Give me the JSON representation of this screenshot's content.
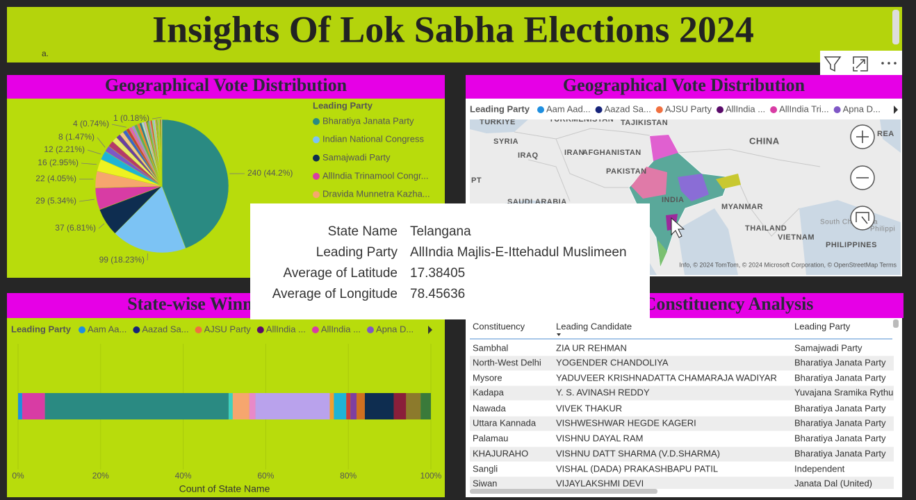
{
  "header": {
    "title": "Insights Of Lok Sabha Elections 2024",
    "note": "a."
  },
  "chart_data": [
    {
      "type": "pie",
      "title": "Geographical Vote Distribution",
      "legend_title": "Leading Party",
      "categories": [
        "Bharatiya Janata Party",
        "Indian National Congress",
        "Samajwadi Party",
        "AllIndia Trinamool Congr...",
        "Dravida Munnetra Kazha...",
        null,
        null,
        null,
        null,
        null,
        null,
        null,
        null,
        null,
        null,
        null,
        null,
        null,
        null,
        null,
        null,
        null,
        null,
        null,
        null,
        null,
        null,
        null,
        null,
        null,
        null,
        null,
        null,
        null,
        null,
        null
      ],
      "values": [
        240,
        99,
        37,
        29,
        22,
        16,
        12,
        8,
        8,
        7,
        6,
        5,
        5,
        4,
        4,
        4,
        4,
        3,
        3,
        3,
        3,
        2,
        2,
        2,
        2,
        2,
        2,
        1,
        1,
        1,
        1,
        1,
        1,
        1,
        1,
        1
      ],
      "value_labels": [
        "240 (44.2%)",
        "99 (18.23%)",
        "37 (6.81%)",
        "29 (5.34%)",
        "22 (4.05%)",
        "16 (2.95%)",
        "12 (2.21%)",
        "8 (1.47%)",
        null,
        null,
        null,
        null,
        null,
        "4 (0.74%)",
        null,
        null,
        null,
        null,
        null,
        null,
        null,
        null,
        null,
        null,
        null,
        null,
        null,
        null,
        null,
        null,
        null,
        null,
        null,
        null,
        null,
        "1 (0.18%)"
      ],
      "colors": [
        "#2a8a82",
        "#7cc3f4",
        "#0e2d50",
        "#d83ca4",
        "#f6a66e",
        "#eef221",
        "#1fb3d6",
        "#7f57c6",
        "#b5396b",
        "#e8e86a",
        "#6b3fa0",
        "#f4c38a",
        "#3d63c9",
        "#c63c3c",
        "#e15fb7",
        "#9d8fd8",
        "#5fa85f",
        "#f07a3a",
        "#2e6f9e",
        "#a7d2ea",
        "#d9a0c8",
        "#8c8c2c",
        "#4fb0a0",
        "#c07bd8",
        "#e04040",
        "#80e0c0",
        "#b0b0ff",
        "#ffb0b0",
        "#606060",
        "#9e7b4f",
        "#30c0ff",
        "#ff70a0",
        "#70ff70",
        "#a05030",
        "#5050a0",
        "#f0a0f0"
      ]
    },
    {
      "type": "bar",
      "orientation": "horizontal",
      "stacked": true,
      "title": "State-wise Winning Party",
      "legend_title": "Leading Party",
      "legend": [
        {
          "name": "Aam Aa...",
          "color": "#1e8fe0"
        },
        {
          "name": "Aazad Sa...",
          "color": "#16237a"
        },
        {
          "name": "AJSU Party",
          "color": "#f07040"
        },
        {
          "name": "AllIndia ...",
          "color": "#5a0a6a"
        },
        {
          "name": "AllIndia ...",
          "color": "#d83ca4"
        },
        {
          "name": "Apna D...",
          "color": "#7f57c6"
        }
      ],
      "series": [
        {
          "name": null,
          "color": "#1e8fe0",
          "values": [
            1
          ]
        },
        {
          "name": null,
          "color": "#d83ca4",
          "values": [
            5.5
          ]
        },
        {
          "name": null,
          "color": "#2a8a82",
          "values": [
            44.5
          ]
        },
        {
          "name": null,
          "color": "#3fd0c0",
          "values": [
            1
          ]
        },
        {
          "name": null,
          "color": "#f6a66e",
          "values": [
            4
          ]
        },
        {
          "name": null,
          "color": "#e889c8",
          "values": [
            1.5
          ]
        },
        {
          "name": null,
          "color": "#b9a2ec",
          "values": [
            18
          ]
        },
        {
          "name": null,
          "color": "#f0a030",
          "values": [
            1
          ]
        },
        {
          "name": null,
          "color": "#1fb3d6",
          "values": [
            3
          ]
        },
        {
          "name": null,
          "color": "#c83c3c",
          "values": [
            1
          ]
        },
        {
          "name": null,
          "color": "#7f3fa0",
          "values": [
            1.5
          ]
        },
        {
          "name": null,
          "color": "#d07020",
          "values": [
            2
          ]
        },
        {
          "name": null,
          "color": "#0e2d50",
          "values": [
            7
          ]
        },
        {
          "name": null,
          "color": "#8a1f3a",
          "values": [
            3
          ]
        },
        {
          "name": null,
          "color": "#8c7a2c",
          "values": [
            3.5
          ]
        },
        {
          "name": null,
          "color": "#3a7a3a",
          "values": [
            2.5
          ]
        }
      ],
      "xlim": [
        0,
        100
      ],
      "xticks": [
        {
          "value": 0,
          "label": "0%"
        },
        {
          "value": 20,
          "label": "20%"
        },
        {
          "value": 40,
          "label": "40%"
        },
        {
          "value": 60,
          "label": "60%"
        },
        {
          "value": 80,
          "label": "80%"
        },
        {
          "value": 100,
          "label": "100%"
        }
      ],
      "xlabel": "Count of State Name",
      "grid": true
    }
  ],
  "map": {
    "title": "Geographical Vote Distribution",
    "legend_title": "Leading Party",
    "legend": [
      {
        "name": "Aam Aad...",
        "color": "#1e8fe0"
      },
      {
        "name": "Aazad Sa...",
        "color": "#16237a"
      },
      {
        "name": "AJSU Party",
        "color": "#f07040"
      },
      {
        "name": "AllIndia ...",
        "color": "#5a0a6a"
      },
      {
        "name": "AllIndia Tri...",
        "color": "#d83ca4"
      },
      {
        "name": "Apna D...",
        "color": "#7f57c6"
      }
    ],
    "labels": [
      "TURKIYE",
      "TURKMENISTAN",
      "TAJIKISTAN",
      "SYRIA",
      "IRAQ",
      "IRAN",
      "AFGHANISTAN",
      "PAKISTAN",
      "CHINA",
      "REA",
      "PT",
      "SAUDI ARABIA",
      "INDIA",
      "MYANMAR",
      "THAILAND",
      "VIETNAM",
      "PHILIPPINES",
      "South China Sea",
      "Philippi"
    ],
    "attribution": "Info, © 2024 TomTom, © 2024 Microsoft Corporation, © OpenStreetMap Terms"
  },
  "tooltip": {
    "rows": [
      [
        "State Name",
        "Telangana"
      ],
      [
        "Leading Party",
        "AllIndia Majlis-E-Ittehadul Muslimeen"
      ],
      [
        "Average of Latitude",
        "17.38405"
      ],
      [
        "Average of Longitude",
        "78.45636"
      ]
    ]
  },
  "table": {
    "title": "Constituency Analysis",
    "columns": [
      "Constituency",
      "Leading Candidate",
      "Leading Party"
    ],
    "rows": [
      [
        "Sambhal",
        "ZIA UR REHMAN",
        "Samajwadi Party"
      ],
      [
        "North-West Delhi",
        "YOGENDER CHANDOLIYA",
        "Bharatiya Janata Party"
      ],
      [
        "Mysore",
        "YADUVEER KRISHNADATTA CHAMARAJA WADIYAR",
        "Bharatiya Janata Party"
      ],
      [
        "Kadapa",
        "Y. S. AVINASH REDDY",
        "Yuvajana Sramika Rythu"
      ],
      [
        "Nawada",
        "VIVEK THAKUR",
        "Bharatiya Janata Party"
      ],
      [
        "Uttara Kannada",
        "VISHWESHWAR HEGDE KAGERI",
        "Bharatiya Janata Party"
      ],
      [
        "Palamau",
        "VISHNU DAYAL RAM",
        "Bharatiya Janata Party"
      ],
      [
        "KHAJURAHO",
        "VISHNU DATT SHARMA (V.D.SHARMA)",
        "Bharatiya Janata Party"
      ],
      [
        "Sangli",
        "VISHAL (DADA) PRAKASHBAPU PATIL",
        "Independent"
      ],
      [
        "Siwan",
        "VIJAYLAKSHMI DEVI",
        "Janata Dal (United)"
      ]
    ]
  }
}
